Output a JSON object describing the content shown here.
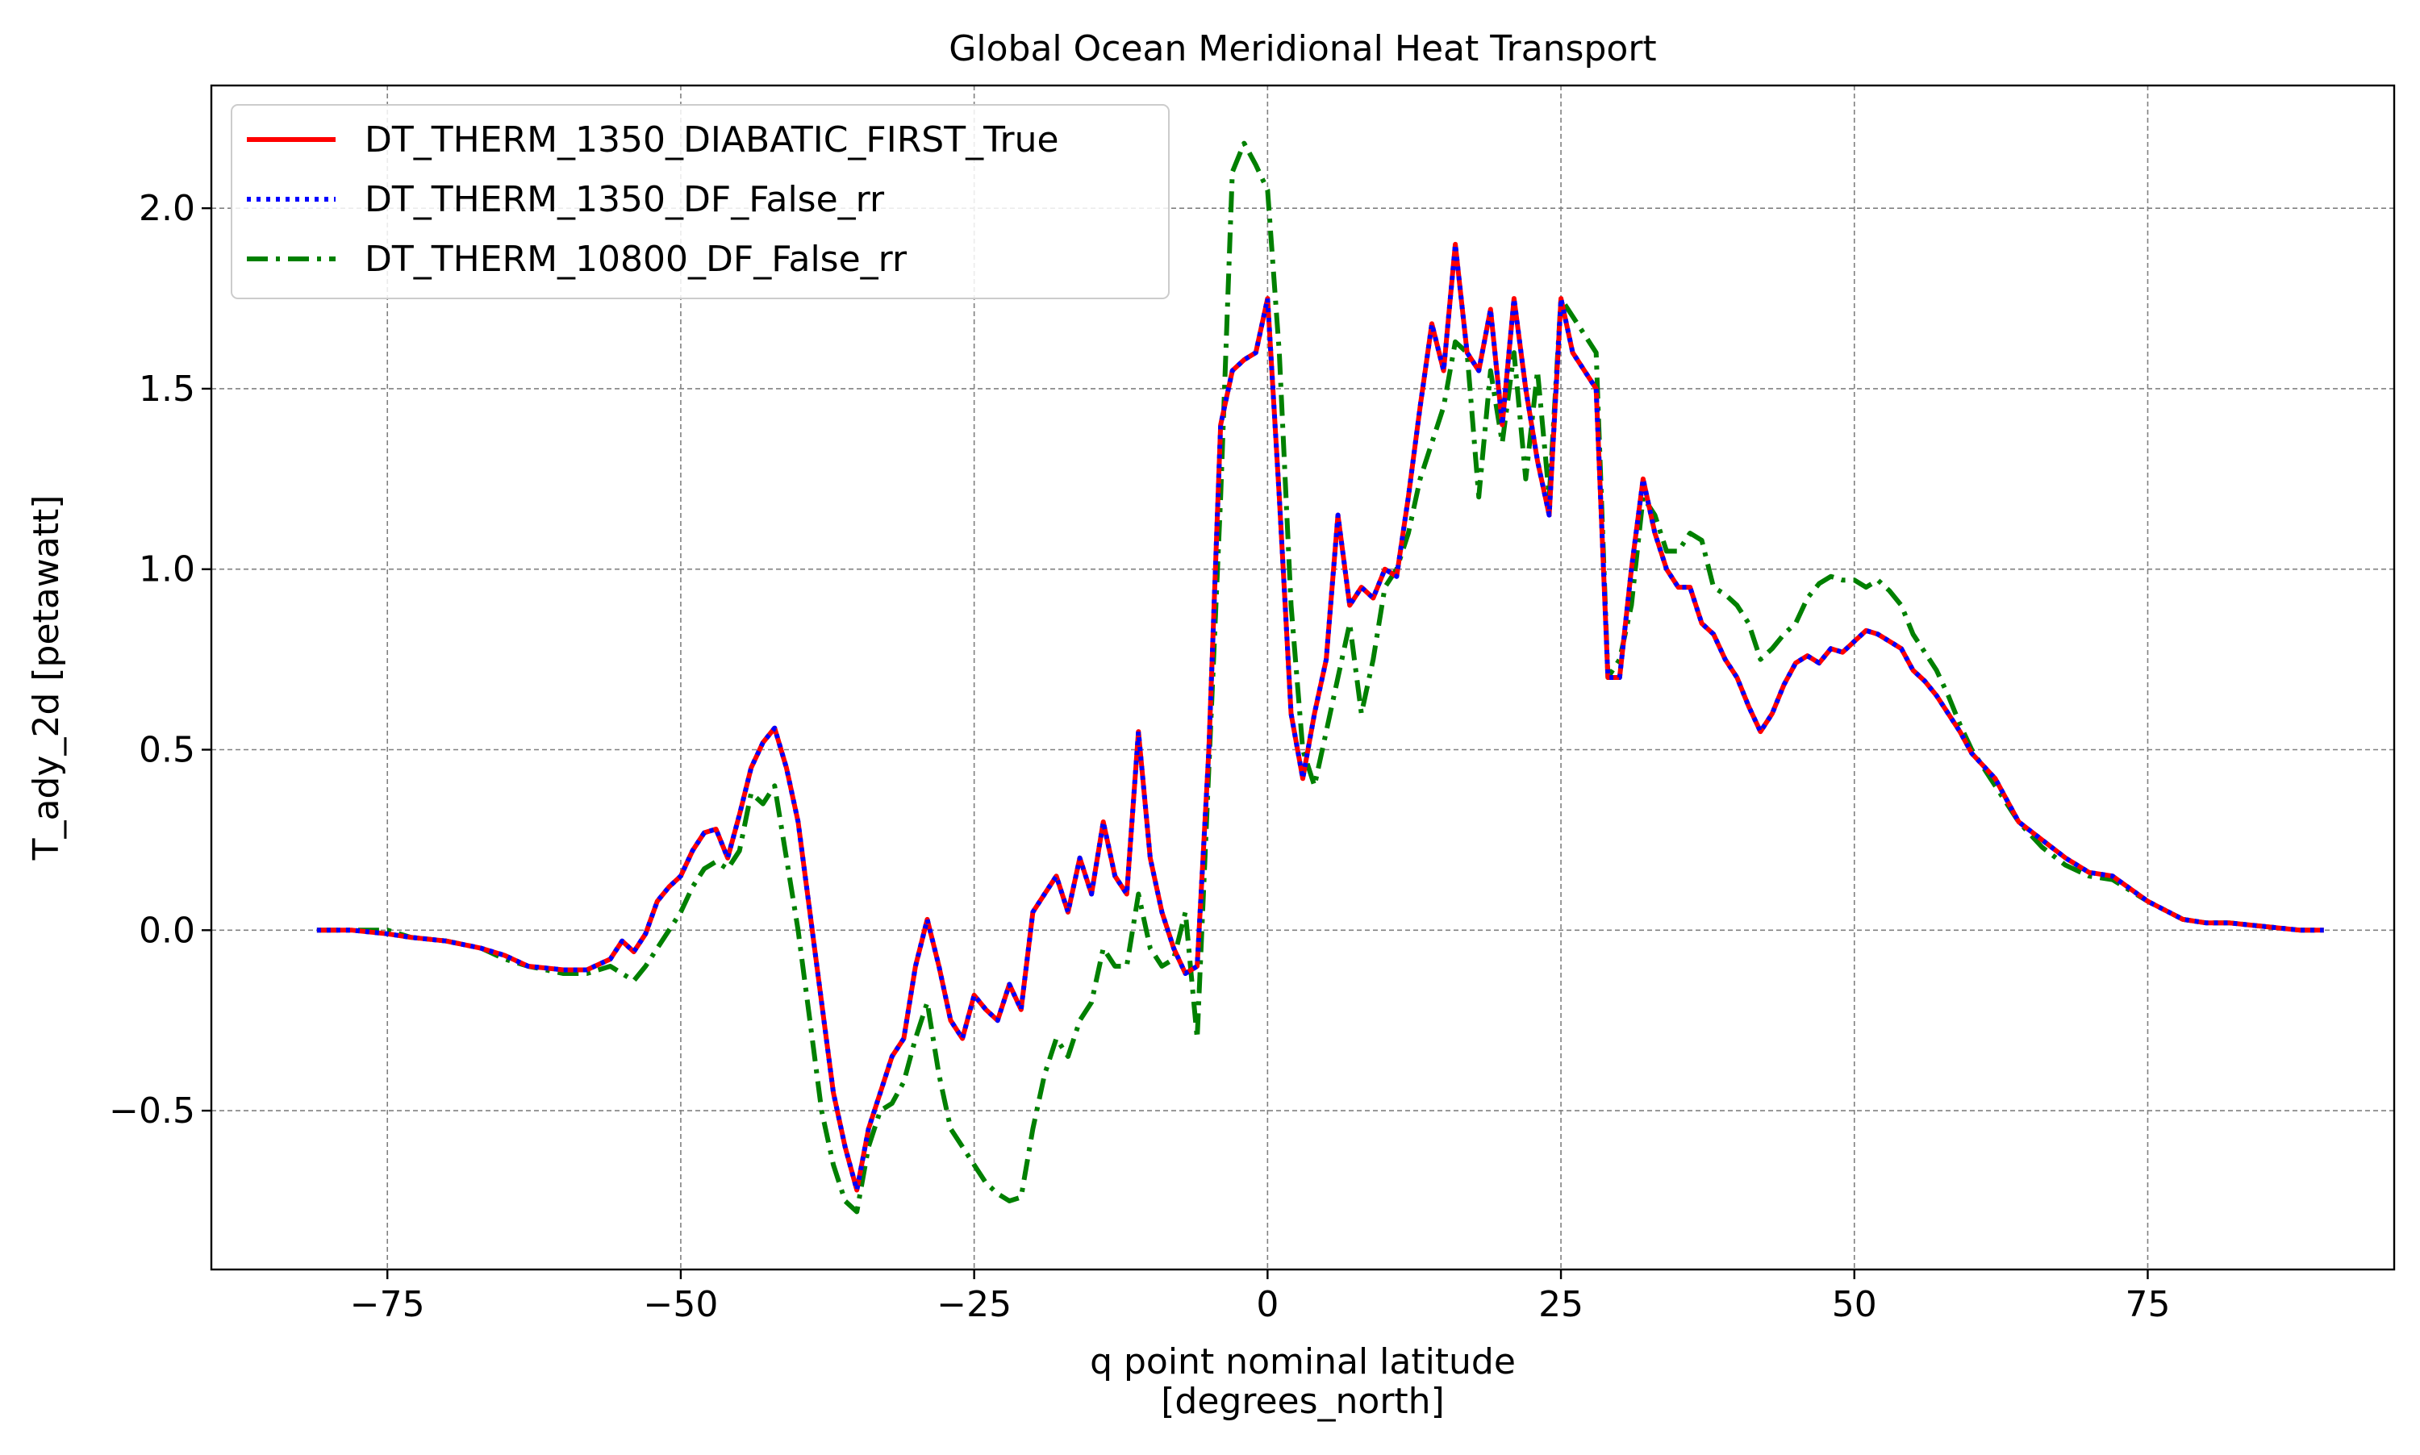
{
  "chart_data": {
    "type": "line",
    "title": "Global Ocean Meridional Heat Transport",
    "xlabel": "q point nominal latitude",
    "xlabel_units": "[degrees_north]",
    "ylabel": "T_ady_2d [petawatt]",
    "xlim": [
      -90,
      96
    ],
    "ylim": [
      -0.94,
      2.34
    ],
    "xticks": [
      -75,
      -50,
      -25,
      0,
      25,
      50,
      75
    ],
    "xtick_labels": [
      "−75",
      "−50",
      "−25",
      "0",
      "25",
      "50",
      "75"
    ],
    "yticks": [
      -0.5,
      0.0,
      0.5,
      1.0,
      1.5,
      2.0
    ],
    "ytick_labels": [
      "−0.5",
      "0.0",
      "0.5",
      "1.0",
      "1.5",
      "2.0"
    ],
    "grid": true,
    "legend_position": "top-left",
    "series": [
      {
        "name": "DT_THERM_1350_DIABATIC_FIRST_True",
        "color": "#ff0000",
        "style": "solid",
        "x": [
          -81,
          -78,
          -75,
          -73,
          -70,
          -67,
          -65,
          -63,
          -60,
          -58,
          -56,
          -55,
          -54,
          -53,
          -52,
          -51,
          -50,
          -49,
          -48,
          -47,
          -46,
          -45,
          -44,
          -43,
          -42,
          -41,
          -40,
          -39,
          -38,
          -37,
          -36,
          -35,
          -34,
          -33,
          -32,
          -31,
          -30,
          -29,
          -28,
          -27,
          -26,
          -25,
          -24,
          -23,
          -22,
          -21,
          -20,
          -19,
          -18,
          -17,
          -16,
          -15,
          -14,
          -13,
          -12,
          -11,
          -10,
          -9,
          -8,
          -7,
          -6,
          -5,
          -4,
          -3,
          -2,
          -1,
          0,
          1,
          2,
          3,
          4,
          5,
          6,
          7,
          8,
          9,
          10,
          11,
          12,
          13,
          14,
          15,
          16,
          17,
          18,
          19,
          20,
          21,
          22,
          23,
          24,
          25,
          26,
          27,
          28,
          29,
          30,
          31,
          32,
          33,
          34,
          35,
          36,
          37,
          38,
          39,
          40,
          41,
          42,
          43,
          44,
          45,
          46,
          47,
          48,
          49,
          50,
          51,
          52,
          53,
          54,
          55,
          56,
          57,
          58,
          59,
          60,
          62,
          64,
          66,
          68,
          70,
          72,
          75,
          78,
          80,
          82,
          85,
          88,
          90
        ],
        "y": [
          0.0,
          0.0,
          -0.01,
          -0.02,
          -0.03,
          -0.05,
          -0.07,
          -0.1,
          -0.11,
          -0.11,
          -0.08,
          -0.03,
          -0.06,
          -0.01,
          0.08,
          0.12,
          0.15,
          0.22,
          0.27,
          0.28,
          0.2,
          0.32,
          0.45,
          0.52,
          0.56,
          0.45,
          0.3,
          0.05,
          -0.2,
          -0.45,
          -0.6,
          -0.72,
          -0.55,
          -0.45,
          -0.35,
          -0.3,
          -0.1,
          0.03,
          -0.1,
          -0.25,
          -0.3,
          -0.18,
          -0.22,
          -0.25,
          -0.15,
          -0.22,
          0.05,
          0.1,
          0.15,
          0.05,
          0.2,
          0.1,
          0.3,
          0.15,
          0.1,
          0.55,
          0.2,
          0.05,
          -0.05,
          -0.12,
          -0.1,
          0.5,
          1.4,
          1.55,
          1.58,
          1.6,
          1.75,
          1.2,
          0.6,
          0.42,
          0.6,
          0.75,
          1.15,
          0.9,
          0.95,
          0.92,
          1.0,
          0.98,
          1.2,
          1.45,
          1.68,
          1.55,
          1.9,
          1.6,
          1.55,
          1.72,
          1.4,
          1.75,
          1.5,
          1.3,
          1.15,
          1.75,
          1.6,
          1.55,
          1.5,
          0.7,
          0.7,
          1.0,
          1.25,
          1.1,
          1.0,
          0.95,
          0.95,
          0.85,
          0.82,
          0.75,
          0.7,
          0.62,
          0.55,
          0.6,
          0.68,
          0.74,
          0.76,
          0.74,
          0.78,
          0.77,
          0.8,
          0.83,
          0.82,
          0.8,
          0.78,
          0.72,
          0.69,
          0.65,
          0.6,
          0.55,
          0.49,
          0.42,
          0.3,
          0.25,
          0.2,
          0.16,
          0.15,
          0.08,
          0.03,
          0.02,
          0.02,
          0.01,
          0.0,
          0.0
        ]
      },
      {
        "name": "DT_THERM_1350_DF_False_rr",
        "color": "#0000ff",
        "style": "dotted",
        "x": [
          -81,
          -78,
          -75,
          -73,
          -70,
          -67,
          -65,
          -63,
          -60,
          -58,
          -56,
          -55,
          -54,
          -53,
          -52,
          -51,
          -50,
          -49,
          -48,
          -47,
          -46,
          -45,
          -44,
          -43,
          -42,
          -41,
          -40,
          -39,
          -38,
          -37,
          -36,
          -35,
          -34,
          -33,
          -32,
          -31,
          -30,
          -29,
          -28,
          -27,
          -26,
          -25,
          -24,
          -23,
          -22,
          -21,
          -20,
          -19,
          -18,
          -17,
          -16,
          -15,
          -14,
          -13,
          -12,
          -11,
          -10,
          -9,
          -8,
          -7,
          -6,
          -5,
          -4,
          -3,
          -2,
          -1,
          0,
          1,
          2,
          3,
          4,
          5,
          6,
          7,
          8,
          9,
          10,
          11,
          12,
          13,
          14,
          15,
          16,
          17,
          18,
          19,
          20,
          21,
          22,
          23,
          24,
          25,
          26,
          27,
          28,
          29,
          30,
          31,
          32,
          33,
          34,
          35,
          36,
          37,
          38,
          39,
          40,
          41,
          42,
          43,
          44,
          45,
          46,
          47,
          48,
          49,
          50,
          51,
          52,
          53,
          54,
          55,
          56,
          57,
          58,
          59,
          60,
          62,
          64,
          66,
          68,
          70,
          72,
          75,
          78,
          80,
          82,
          85,
          88,
          90
        ],
        "y": [
          0.0,
          0.0,
          -0.01,
          -0.02,
          -0.03,
          -0.05,
          -0.07,
          -0.1,
          -0.11,
          -0.11,
          -0.08,
          -0.03,
          -0.06,
          -0.01,
          0.08,
          0.12,
          0.15,
          0.22,
          0.27,
          0.28,
          0.2,
          0.32,
          0.45,
          0.52,
          0.56,
          0.45,
          0.3,
          0.05,
          -0.2,
          -0.45,
          -0.6,
          -0.72,
          -0.55,
          -0.45,
          -0.35,
          -0.3,
          -0.1,
          0.03,
          -0.1,
          -0.25,
          -0.3,
          -0.18,
          -0.22,
          -0.25,
          -0.15,
          -0.22,
          0.05,
          0.1,
          0.15,
          0.05,
          0.2,
          0.1,
          0.3,
          0.15,
          0.1,
          0.55,
          0.2,
          0.05,
          -0.05,
          -0.12,
          -0.1,
          0.5,
          1.4,
          1.55,
          1.58,
          1.6,
          1.75,
          1.2,
          0.6,
          0.42,
          0.6,
          0.75,
          1.15,
          0.9,
          0.95,
          0.92,
          1.0,
          0.98,
          1.2,
          1.45,
          1.68,
          1.55,
          1.9,
          1.6,
          1.55,
          1.72,
          1.4,
          1.75,
          1.5,
          1.3,
          1.15,
          1.75,
          1.6,
          1.55,
          1.5,
          0.7,
          0.7,
          1.0,
          1.25,
          1.1,
          1.0,
          0.95,
          0.95,
          0.85,
          0.82,
          0.75,
          0.7,
          0.62,
          0.55,
          0.6,
          0.68,
          0.74,
          0.76,
          0.74,
          0.78,
          0.77,
          0.8,
          0.83,
          0.82,
          0.8,
          0.78,
          0.72,
          0.69,
          0.65,
          0.6,
          0.55,
          0.49,
          0.42,
          0.3,
          0.25,
          0.2,
          0.16,
          0.15,
          0.08,
          0.03,
          0.02,
          0.02,
          0.01,
          0.0,
          0.0
        ]
      },
      {
        "name": "DT_THERM_10800_DF_False_rr",
        "color": "#008000",
        "style": "dashdot",
        "x": [
          -81,
          -78,
          -75,
          -73,
          -70,
          -67,
          -65,
          -63,
          -60,
          -58,
          -56,
          -55,
          -54,
          -53,
          -52,
          -51,
          -50,
          -49,
          -48,
          -47,
          -46,
          -45,
          -44,
          -43,
          -42,
          -41,
          -40,
          -39,
          -38,
          -37,
          -36,
          -35,
          -34,
          -33,
          -32,
          -31,
          -30,
          -29,
          -28,
          -27,
          -26,
          -25,
          -24,
          -23,
          -22,
          -21,
          -20,
          -19,
          -18,
          -17,
          -16,
          -15,
          -14,
          -13,
          -12,
          -11,
          -10,
          -9,
          -8,
          -7,
          -6,
          -5,
          -4,
          -3,
          -2,
          -1,
          0,
          1,
          2,
          3,
          4,
          5,
          6,
          7,
          8,
          9,
          10,
          11,
          12,
          13,
          14,
          15,
          16,
          17,
          18,
          19,
          20,
          21,
          22,
          23,
          24,
          25,
          26,
          27,
          28,
          29,
          30,
          31,
          32,
          33,
          34,
          35,
          36,
          37,
          38,
          39,
          40,
          41,
          42,
          43,
          44,
          45,
          46,
          47,
          48,
          49,
          50,
          51,
          52,
          53,
          54,
          55,
          56,
          57,
          58,
          59,
          60,
          62,
          64,
          66,
          68,
          70,
          72,
          75,
          78,
          80,
          82,
          85,
          88,
          90
        ],
        "y": [
          0.0,
          0.0,
          0.0,
          -0.02,
          -0.03,
          -0.05,
          -0.08,
          -0.1,
          -0.12,
          -0.12,
          -0.1,
          -0.12,
          -0.14,
          -0.1,
          -0.05,
          0.0,
          0.05,
          0.12,
          0.17,
          0.19,
          0.17,
          0.22,
          0.38,
          0.35,
          0.4,
          0.2,
          0.0,
          -0.25,
          -0.5,
          -0.65,
          -0.75,
          -0.78,
          -0.6,
          -0.5,
          -0.48,
          -0.42,
          -0.3,
          -0.2,
          -0.4,
          -0.55,
          -0.6,
          -0.65,
          -0.7,
          -0.73,
          -0.75,
          -0.74,
          -0.55,
          -0.4,
          -0.3,
          -0.35,
          -0.25,
          -0.2,
          -0.05,
          -0.1,
          -0.1,
          0.1,
          -0.05,
          -0.1,
          -0.08,
          0.05,
          -0.3,
          0.45,
          1.2,
          2.1,
          2.18,
          2.12,
          2.05,
          1.6,
          0.9,
          0.5,
          0.4,
          0.55,
          0.7,
          0.85,
          0.6,
          0.75,
          0.95,
          1.0,
          1.1,
          1.25,
          1.35,
          1.45,
          1.63,
          1.6,
          1.2,
          1.55,
          1.35,
          1.6,
          1.25,
          1.55,
          1.2,
          1.75,
          1.7,
          1.65,
          1.6,
          0.7,
          0.75,
          0.9,
          1.2,
          1.15,
          1.05,
          1.05,
          1.1,
          1.08,
          0.95,
          0.93,
          0.9,
          0.85,
          0.75,
          0.78,
          0.82,
          0.85,
          0.92,
          0.96,
          0.98,
          0.97,
          0.97,
          0.95,
          0.97,
          0.94,
          0.9,
          0.82,
          0.77,
          0.72,
          0.65,
          0.57,
          0.5,
          0.4,
          0.3,
          0.23,
          0.18,
          0.15,
          0.14,
          0.08,
          0.03,
          0.02,
          0.02,
          0.01,
          0.0,
          0.0
        ]
      }
    ]
  }
}
